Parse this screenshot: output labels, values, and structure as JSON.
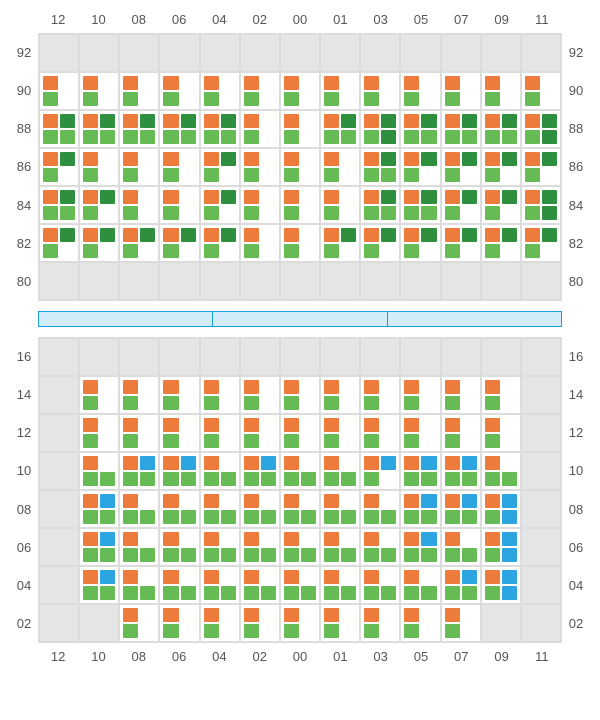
{
  "colors": {
    "orange": "#ec7b3c",
    "green": "#66bb55",
    "darkgreen": "#2e8f3f",
    "blue": "#2ca5e0",
    "empty_bg": "#e5e5e5",
    "grid_border": "#dcdcdc",
    "sep_border": "#1a9edb",
    "sep_fill": "#d3ecfa",
    "text": "#555555"
  },
  "layout": {
    "num_cols": 13,
    "top_rows": 7,
    "bot_rows": 8,
    "cell_inner_cols": 2,
    "cell_inner_rows": 2
  },
  "col_labels": [
    "12",
    "10",
    "08",
    "06",
    "04",
    "02",
    "00",
    "01",
    "03",
    "05",
    "07",
    "09",
    "11"
  ],
  "top": {
    "row_labels": [
      "92",
      "90",
      "88",
      "86",
      "84",
      "82",
      "80"
    ],
    "cells": [
      [
        "E",
        "E",
        "E",
        "E",
        "E",
        "E",
        "E",
        "E",
        "E",
        "E",
        "E",
        "E",
        "E"
      ],
      [
        "OG",
        "OG",
        "OG",
        "OG",
        "OG",
        "OG",
        "OG",
        "OG",
        "OG",
        "OG",
        "OG",
        "OG",
        "OG"
      ],
      [
        "ODGG",
        "ODGG",
        "ODGG",
        "ODGG",
        "ODGG",
        "OG",
        "OG",
        "ODGG",
        "ODGD",
        "ODGG",
        "ODGG",
        "ODGG",
        "ODGD"
      ],
      [
        "ODG",
        "OG",
        "OG",
        "OG",
        "ODG",
        "OG",
        "OG",
        "OG",
        "ODGG",
        "ODG",
        "ODG",
        "ODG",
        "ODG"
      ],
      [
        "ODGG",
        "ODG",
        "OG",
        "OG",
        "ODG",
        "OG",
        "OG",
        "OG",
        "ODGG",
        "ODGG",
        "ODG",
        "ODG",
        "ODGD"
      ],
      [
        "ODG",
        "ODG",
        "ODG",
        "ODG",
        "ODG",
        "OG",
        "OG",
        "ODG",
        "ODG",
        "ODG",
        "ODG",
        "ODG",
        "ODG"
      ],
      [
        "E",
        "E",
        "E",
        "E",
        "E",
        "E",
        "E",
        "E",
        "E",
        "E",
        "E",
        "E",
        "E"
      ]
    ]
  },
  "separator_segments": 3,
  "bot": {
    "row_labels": [
      "16",
      "14",
      "12",
      "10",
      "08",
      "06",
      "04",
      "02"
    ],
    "cells": [
      [
        "E",
        "E",
        "E",
        "E",
        "E",
        "E",
        "E",
        "E",
        "E",
        "E",
        "E",
        "E",
        "E"
      ],
      [
        "E",
        "OG",
        "OG",
        "OG",
        "OG",
        "OG",
        "OG",
        "OG",
        "OG",
        "OG",
        "OG",
        "OG",
        "E"
      ],
      [
        "E",
        "OG",
        "OG",
        "OG",
        "OG",
        "OG",
        "OG",
        "OG",
        "OG",
        "OG",
        "OG",
        "OG",
        "E"
      ],
      [
        "E",
        "OGG",
        "OBGG",
        "OBGG",
        "OGG",
        "OBGG",
        "OGG",
        "OGG",
        "OBG",
        "OBGG",
        "OBGG",
        "OGG",
        "E"
      ],
      [
        "E",
        "OBGG",
        "OGG",
        "OGG",
        "OGG",
        "OGG",
        "OGG",
        "OGG",
        "OGG",
        "OBGG",
        "OBGG",
        "OBGB",
        "E"
      ],
      [
        "E",
        "OBGG",
        "OGG",
        "OGG",
        "OGG",
        "OGG",
        "OGG",
        "OGG",
        "OGG",
        "OBGG",
        "OGG",
        "OBGB",
        "E"
      ],
      [
        "E",
        "OBGG",
        "OGG",
        "OGG",
        "OGG",
        "OGG",
        "OGG",
        "OGG",
        "OGG",
        "OGG",
        "OBGG",
        "OBGB",
        "E"
      ],
      [
        "E",
        "E",
        "OG",
        "OG",
        "OG",
        "OG",
        "OG",
        "OG",
        "OG",
        "OG",
        "OG",
        "E",
        "E"
      ]
    ]
  },
  "cell_patterns_legend": {
    "E": "empty/grey cell",
    "OG": "orange TL, green BL",
    "ODG": "orange TL, darkgreen TR, green BL",
    "ODGG": "orange TL, darkgreen TR, green BL, green BR",
    "ODGD": "orange TL, darkgreen TR, green BL, darkgreen BR",
    "OGG": "orange TL, green BL, green BR",
    "OBG": "orange TL, blue TR, green BL",
    "OBGG": "orange TL, blue TR, green BL, green BR",
    "OBGB": "orange TL, blue TR, green BL, blue BR"
  }
}
